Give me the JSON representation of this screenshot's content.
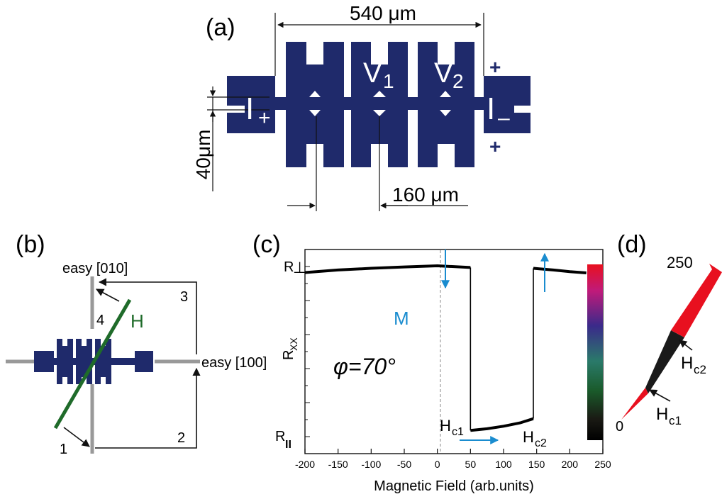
{
  "panel_a": {
    "label": "(a)",
    "dim_top": "540 μm",
    "dim_bottom": "160 μm",
    "dim_left": "40μm",
    "v1": "V",
    "v1_sub": "1",
    "v2": "V",
    "v2_sub": "2",
    "i_plus": "I",
    "i_plus_sub": "+",
    "i_minus": "I",
    "i_minus_sub": "–",
    "plus_top": "+",
    "plus_bottom": "+",
    "device_color": "#1f2a6b"
  },
  "panel_b": {
    "label": "(b)",
    "easy_010": "easy [010]",
    "easy_100": "easy [100]",
    "field": "H",
    "step1": "1",
    "step2": "2",
    "step3": "3",
    "step4": "4",
    "field_color": "#1f6b2a",
    "axis_color": "#999999"
  },
  "panel_c": {
    "label": "(c)",
    "r_perp": "R",
    "r_perp_sub": "⊥",
    "r_par": "R",
    "r_par_sub": "II",
    "ylabel": "R",
    "ylabel_sub": "XX",
    "xlabel": "Magnetic Field (arb.units)",
    "m_label": "M",
    "phi_label": "φ=70°",
    "hc1": "H",
    "hc1_sub": "c1",
    "hc2": "H",
    "hc2_sub": "c2",
    "accent": "#1a8ccf"
  },
  "panel_d": {
    "label": "(d)",
    "top_value": "250",
    "bottom_value": "0",
    "hc1": "H",
    "hc1_sub": "c1",
    "hc2": "H",
    "hc2_sub": "c2",
    "red": "#e8101f"
  },
  "chart_data": {
    "type": "line",
    "xlabel": "Magnetic Field (arb.units)",
    "ylabel": "Rxx",
    "xlim": [
      -200,
      250
    ],
    "x_ticks": [
      -200,
      -150,
      -100,
      -50,
      0,
      50,
      100,
      150,
      200,
      250
    ],
    "y_ticks": [
      "R⊥",
      "RII"
    ],
    "series": [
      {
        "x": [
          -200,
          -150,
          -100,
          -50,
          0,
          50
        ],
        "y": [
          0.96,
          0.975,
          0.985,
          0.993,
          1.0,
          0.99
        ]
      },
      {
        "x": [
          50,
          75,
          100,
          125,
          145
        ],
        "y": [
          0.02,
          0.03,
          0.045,
          0.065,
          0.09
        ]
      },
      {
        "x": [
          145,
          175,
          200,
          225
        ],
        "y": [
          0.985,
          0.975,
          0.965,
          0.958
        ]
      }
    ]
  }
}
